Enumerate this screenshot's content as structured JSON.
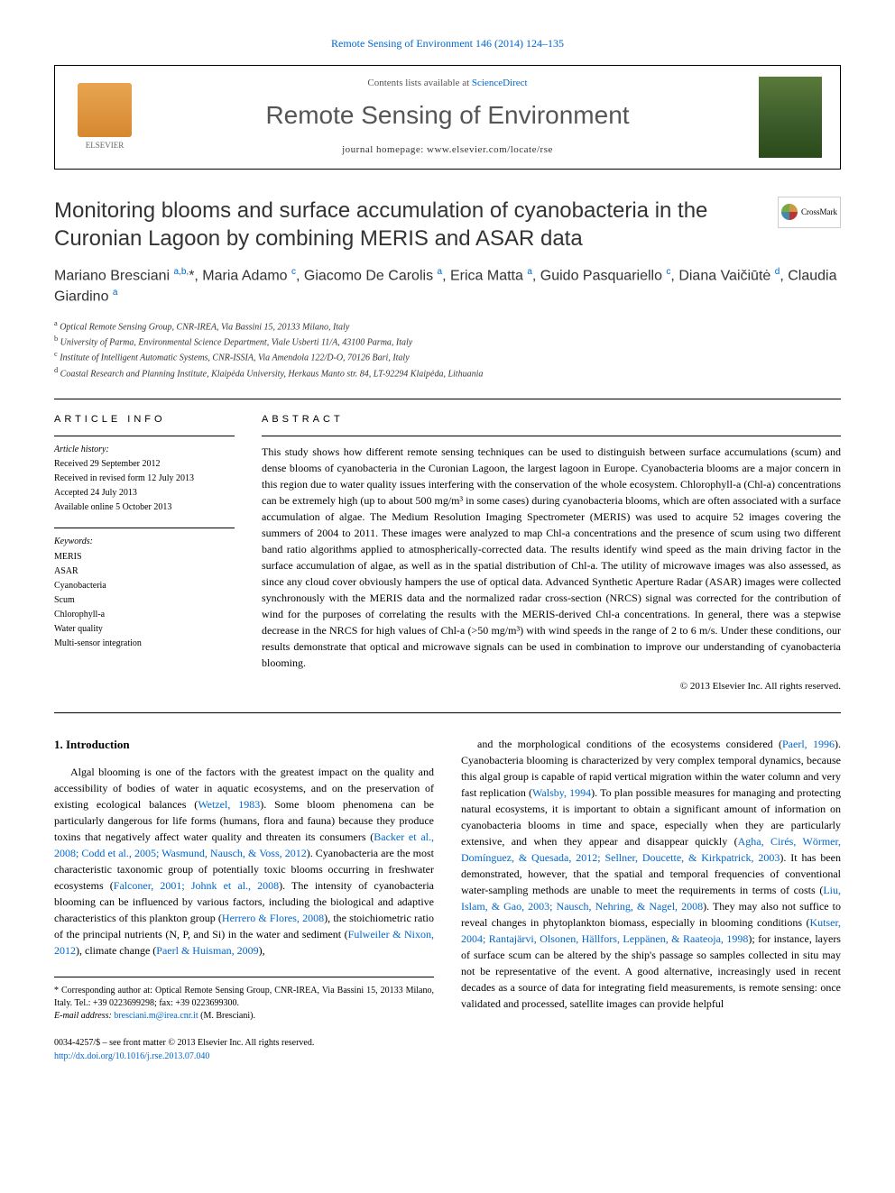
{
  "top_link": "Remote Sensing of Environment 146 (2014) 124–135",
  "header": {
    "contents_text": "Contents lists available at ",
    "sciencedirect": "ScienceDirect",
    "journal_name": "Remote Sensing of Environment",
    "homepage_label": "journal homepage: ",
    "homepage_url": "www.elsevier.com/locate/rse",
    "elsevier_label": "ELSEVIER"
  },
  "crossmark_label": "CrossMark",
  "title": "Monitoring blooms and surface accumulation of cyanobacteria in the Curonian Lagoon by combining MERIS and ASAR data",
  "authors_html": "Mariano Bresciani <sup class='sup-link'>a,b,</sup>*, Maria Adamo <sup class='sup-link'>c</sup>, Giacomo De Carolis <sup class='sup-link'>a</sup>, Erica Matta <sup class='sup-link'>a</sup>, Guido Pasquariello <sup class='sup-link'>c</sup>, Diana Vaičiūtė <sup class='sup-link'>d</sup>, Claudia Giardino <sup class='sup-link'>a</sup>",
  "affiliations": [
    {
      "sup": "a",
      "text": "Optical Remote Sensing Group, CNR-IREA, Via Bassini 15, 20133 Milano, Italy"
    },
    {
      "sup": "b",
      "text": "University of Parma, Environmental Science Department, Viale Usberti 11/A, 43100 Parma, Italy"
    },
    {
      "sup": "c",
      "text": "Institute of Intelligent Automatic Systems, CNR-ISSIA, Via Amendola 122/D-O, 70126 Bari, Italy"
    },
    {
      "sup": "d",
      "text": "Coastal Research and Planning Institute, Klaipėda University, Herkaus Manto str. 84, LT-92294 Klaipėda, Lithuania"
    }
  ],
  "article_info": {
    "heading": "ARTICLE INFO",
    "history_label": "Article history:",
    "history": [
      "Received 29 September 2012",
      "Received in revised form 12 July 2013",
      "Accepted 24 July 2013",
      "Available online 5 October 2013"
    ],
    "keywords_label": "Keywords:",
    "keywords": [
      "MERIS",
      "ASAR",
      "Cyanobacteria",
      "Scum",
      "Chlorophyll-a",
      "Water quality",
      "Multi-sensor integration"
    ]
  },
  "abstract": {
    "heading": "ABSTRACT",
    "text": "This study shows how different remote sensing techniques can be used to distinguish between surface accumulations (scum) and dense blooms of cyanobacteria in the Curonian Lagoon, the largest lagoon in Europe. Cyanobacteria blooms are a major concern in this region due to water quality issues interfering with the conservation of the whole ecosystem. Chlorophyll-a (Chl-a) concentrations can be extremely high (up to about 500 mg/m³ in some cases) during cyanobacteria blooms, which are often associated with a surface accumulation of algae. The Medium Resolution Imaging Spectrometer (MERIS) was used to acquire 52 images covering the summers of 2004 to 2011. These images were analyzed to map Chl-a concentrations and the presence of scum using two different band ratio algorithms applied to atmospherically-corrected data. The results identify wind speed as the main driving factor in the surface accumulation of algae, as well as in the spatial distribution of Chl-a. The utility of microwave images was also assessed, as since any cloud cover obviously hampers the use of optical data. Advanced Synthetic Aperture Radar (ASAR) images were collected synchronously with the MERIS data and the normalized radar cross-section (NRCS) signal was corrected for the contribution of wind for the purposes of correlating the results with the MERIS-derived Chl-a concentrations. In general, there was a stepwise decrease in the NRCS for high values of Chl-a (>50 mg/m³) with wind speeds in the range of 2 to 6 m/s. Under these conditions, our results demonstrate that optical and microwave signals can be used in combination to improve our understanding of cyanobacteria blooming.",
    "copyright": "© 2013 Elsevier Inc. All rights reserved."
  },
  "section1": {
    "heading": "1. Introduction",
    "col1": "Algal blooming is one of the factors with the greatest impact on the quality and accessibility of bodies of water in aquatic ecosystems, and on the preservation of existing ecological balances (<span class='ref'>Wetzel, 1983</span>). Some bloom phenomena can be particularly dangerous for life forms (humans, flora and fauna) because they produce toxins that negatively affect water quality and threaten its consumers (<span class='ref'>Backer et al., 2008; Codd et al., 2005; Wasmund, Nausch, & Voss, 2012</span>). Cyanobacteria are the most characteristic taxonomic group of potentially toxic blooms occurring in freshwater ecosystems (<span class='ref'>Falconer, 2001; Johnk et al., 2008</span>). The intensity of cyanobacteria blooming can be influenced by various factors, including the biological and adaptive characteristics of this plankton group (<span class='ref'>Herrero & Flores, 2008</span>), the stoichiometric ratio of the principal nutrients (N, P, and Si) in the water and sediment (<span class='ref'>Fulweiler & Nixon, 2012</span>), climate change (<span class='ref'>Paerl & Huisman, 2009</span>),",
    "col2": "and the morphological conditions of the ecosystems considered (<span class='ref'>Paerl, 1996</span>). Cyanobacteria blooming is characterized by very complex temporal dynamics, because this algal group is capable of rapid vertical migration within the water column and very fast replication (<span class='ref'>Walsby, 1994</span>). To plan possible measures for managing and protecting natural ecosystems, it is important to obtain a significant amount of information on cyanobacteria blooms in time and space, especially when they are particularly extensive, and when they appear and disappear quickly (<span class='ref'>Agha, Cirés, Wörmer, Domínguez, & Quesada, 2012; Sellner, Doucette, & Kirkpatrick, 2003</span>). It has been demonstrated, however, that the spatial and temporal frequencies of conventional water-sampling methods are unable to meet the requirements in terms of costs (<span class='ref'>Liu, Islam, & Gao, 2003; Nausch, Nehring, & Nagel, 2008</span>). They may also not suffice to reveal changes in phytoplankton biomass, especially in blooming conditions (<span class='ref'>Kutser, 2004; Rantajärvi, Olsonen, Hällfors, Leppänen, & Raateoja, 1998</span>); for instance, layers of surface scum can be altered by the ship's passage so samples collected in situ may not be representative of the event. A good alternative, increasingly used in recent decades as a source of data for integrating field measurements, is remote sensing: once validated and processed, satellite images can provide helpful"
  },
  "footnote": {
    "corresponding": "* Corresponding author at: Optical Remote Sensing Group, CNR-IREA, Via Bassini 15, 20133 Milano, Italy. Tel.: +39 0223699298; fax: +39 0223699300.",
    "email_label": "E-mail address: ",
    "email": "bresciani.m@irea.cnr.it",
    "email_suffix": " (M. Bresciani)."
  },
  "footer": {
    "issn": "0034-4257/$ – see front matter © 2013 Elsevier Inc. All rights reserved.",
    "doi": "http://dx.doi.org/10.1016/j.rse.2013.07.040"
  },
  "colors": {
    "link": "#0066cc",
    "text": "#000000",
    "heading": "#333333"
  }
}
